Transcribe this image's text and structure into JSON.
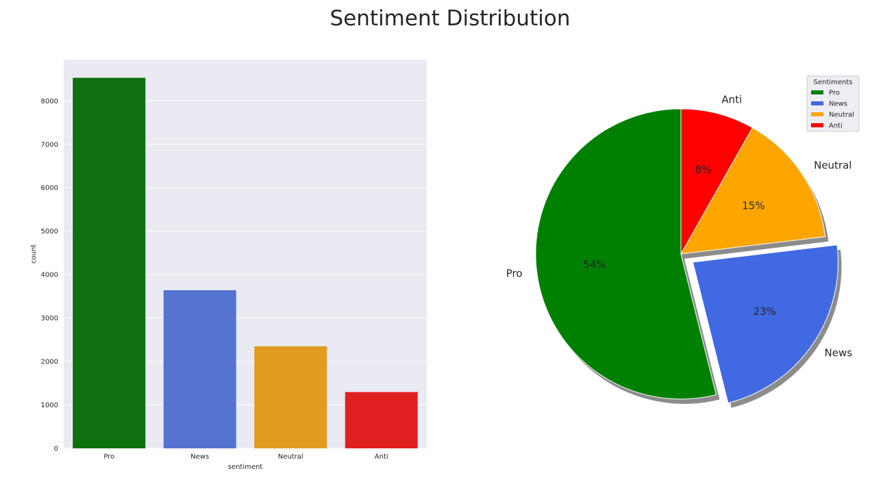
{
  "figure_title": "Sentiment Distribution",
  "chart_data": [
    {
      "type": "bar",
      "categories": [
        "Pro",
        "News",
        "Neutral",
        "Anti"
      ],
      "values": [
        8530,
        3640,
        2350,
        1296
      ],
      "colors": [
        "#0e700e",
        "#5573d0",
        "#e19c20",
        "#e02020"
      ],
      "xlabel": "sentiment",
      "ylabel": "count",
      "ylim": [
        0,
        8950
      ],
      "yticks": [
        0,
        1000,
        2000,
        3000,
        4000,
        5000,
        6000,
        7000,
        8000
      ],
      "ytick_labels": [
        "0",
        "1000",
        "2000",
        "3000",
        "4000",
        "5000",
        "6000",
        "7000",
        "8000"
      ],
      "grid": true,
      "background": "#eaeaf2"
    },
    {
      "type": "pie",
      "labels": [
        "Pro",
        "News",
        "Neutral",
        "Anti"
      ],
      "values": [
        53.9,
        23.0,
        14.9,
        8.2
      ],
      "pct_labels": [
        "54%",
        "23%",
        "15%",
        "8%"
      ],
      "colors": [
        "#008000",
        "#4169e1",
        "#ffa500",
        "#ff0000"
      ],
      "explode": [
        0,
        0.1,
        0,
        0
      ],
      "start_angle": 90,
      "shadow": true,
      "legend": {
        "title": "Sentiments",
        "position": "upper-right",
        "entries": [
          "Pro",
          "News",
          "Neutral",
          "Anti"
        ]
      }
    }
  ]
}
